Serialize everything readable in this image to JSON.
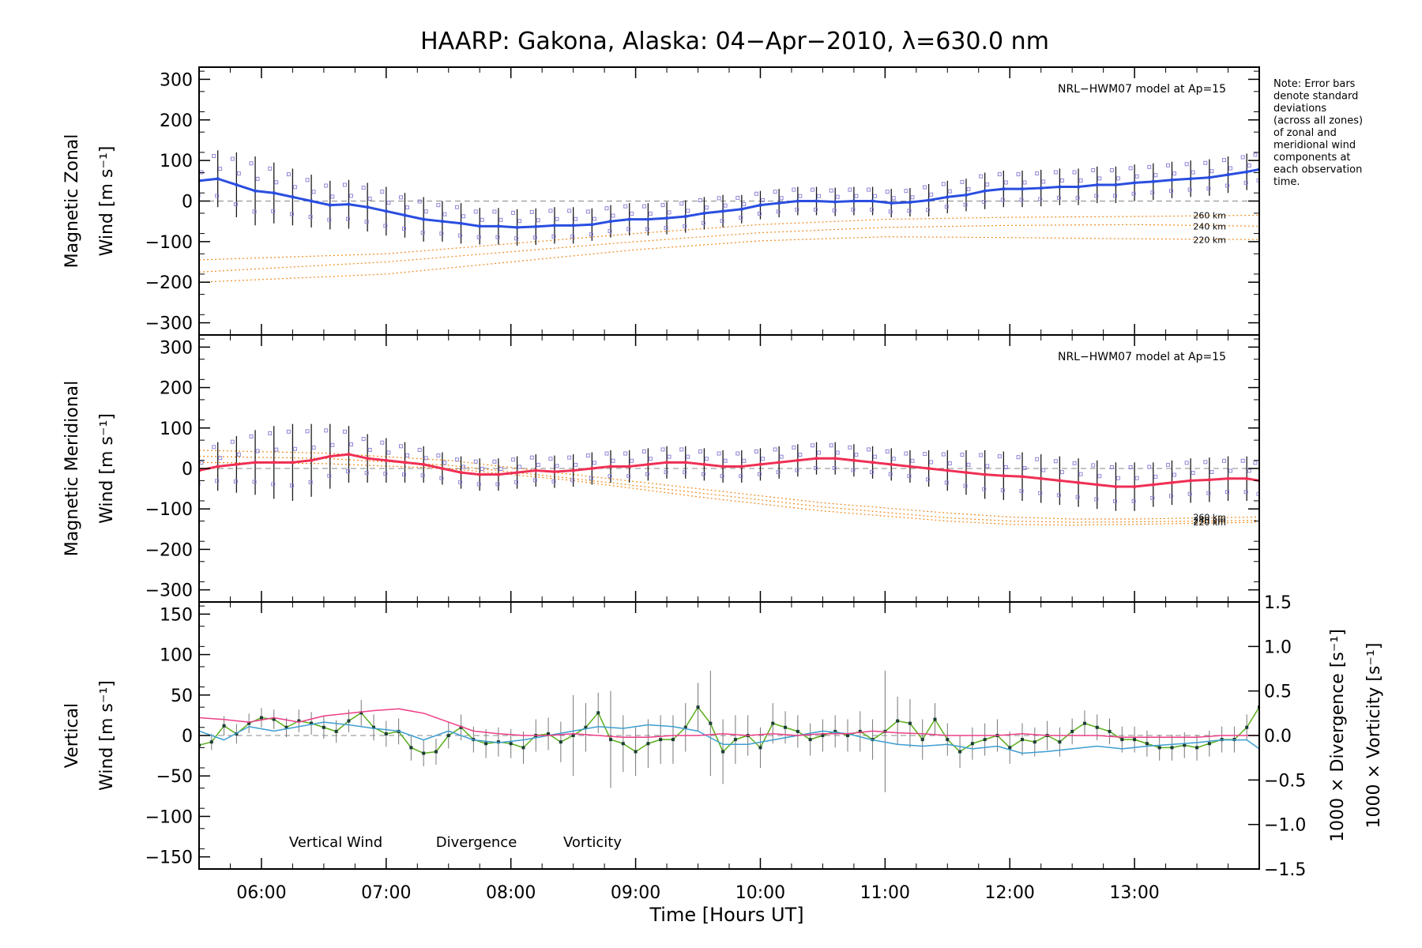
{
  "title": "HAARP: Gakona,  Alaska: 04−Apr−2010, λ=630.0 nm",
  "note_lines": [
    "Note: Error bars",
    "denote standard",
    "deviations",
    "(across all zones)",
    "of zonal and",
    "meridional wind",
    "components at",
    "each observation",
    "time."
  ],
  "colors": {
    "zonal": "#2a4ee0",
    "meridional": "#ef2f54",
    "vertical": "#5aae1c",
    "divergence": "#3e9ed1",
    "vorticity": "#ee3f88",
    "model": "#f08a1c",
    "error_bar": "#000000",
    "scatter": "#8f86d8"
  },
  "chart_data": [
    {
      "type": "line",
      "panel": "zonal",
      "ylabel_lines": [
        "Magnetic Zonal",
        "Wind [m s⁻¹]"
      ],
      "ylim": [
        -330,
        330
      ],
      "yticks": [
        -300,
        -200,
        -100,
        0,
        100,
        200,
        300
      ],
      "ytick_labels": [
        "−300",
        "−200",
        "−100",
        "0",
        "100",
        "200",
        "300"
      ],
      "xlim": [
        5.5,
        14.0
      ],
      "model_label": "NRL−HWM07 model at Ap=15",
      "model_series": [
        {
          "name": "260 km",
          "x": [
            5.5,
            7,
            8,
            9,
            10,
            11,
            12,
            13,
            14
          ],
          "y": [
            -145,
            -130,
            -105,
            -80,
            -58,
            -45,
            -40,
            -38,
            -35
          ]
        },
        {
          "name": "240 km",
          "x": [
            5.5,
            7,
            8,
            9,
            10,
            11,
            12,
            13,
            14
          ],
          "y": [
            -175,
            -150,
            -125,
            -100,
            -78,
            -65,
            -60,
            -58,
            -62
          ]
        },
        {
          "name": "220 km",
          "x": [
            5.5,
            7,
            8,
            9,
            10,
            11,
            12,
            13,
            14
          ],
          "y": [
            -200,
            -180,
            -150,
            -120,
            -98,
            -88,
            -90,
            -93,
            -95
          ]
        }
      ],
      "series": [
        {
          "name": "Zonal",
          "x": [
            5.5,
            5.65,
            5.8,
            5.95,
            6.1,
            6.25,
            6.4,
            6.55,
            6.7,
            6.85,
            7.0,
            7.15,
            7.3,
            7.45,
            7.6,
            7.75,
            7.9,
            8.05,
            8.2,
            8.35,
            8.5,
            8.65,
            8.8,
            8.95,
            9.1,
            9.25,
            9.4,
            9.55,
            9.7,
            9.85,
            10.0,
            10.15,
            10.3,
            10.45,
            10.6,
            10.75,
            10.9,
            11.05,
            11.2,
            11.35,
            11.5,
            11.65,
            11.8,
            11.95,
            12.1,
            12.25,
            12.4,
            12.55,
            12.7,
            12.85,
            13.0,
            13.15,
            13.3,
            13.45,
            13.6,
            13.75,
            13.9,
            14.0
          ],
          "y": [
            50,
            55,
            40,
            25,
            20,
            10,
            0,
            -10,
            -8,
            -15,
            -25,
            -35,
            -45,
            -50,
            -55,
            -62,
            -62,
            -65,
            -63,
            -60,
            -60,
            -58,
            -50,
            -45,
            -45,
            -42,
            -38,
            -30,
            -25,
            -20,
            -10,
            -5,
            0,
            0,
            -2,
            0,
            0,
            -5,
            -3,
            2,
            10,
            15,
            25,
            30,
            30,
            32,
            35,
            35,
            40,
            40,
            45,
            48,
            52,
            55,
            58,
            65,
            72,
            78
          ],
          "err": [
            60,
            70,
            80,
            85,
            75,
            70,
            65,
            60,
            60,
            60,
            60,
            55,
            55,
            50,
            50,
            45,
            45,
            45,
            45,
            45,
            45,
            40,
            40,
            40,
            40,
            40,
            40,
            40,
            40,
            35,
            35,
            35,
            35,
            35,
            35,
            35,
            35,
            35,
            35,
            40,
            40,
            40,
            45,
            45,
            45,
            45,
            45,
            45,
            45,
            45,
            45,
            45,
            45,
            45,
            45,
            45,
            45,
            45
          ]
        }
      ]
    },
    {
      "type": "line",
      "panel": "meridional",
      "ylabel_lines": [
        "Magnetic Meridional",
        "Wind [m s⁻¹]"
      ],
      "ylim": [
        -330,
        330
      ],
      "yticks": [
        -300,
        -200,
        -100,
        0,
        100,
        200,
        300
      ],
      "ytick_labels": [
        "−300",
        "−200",
        "−100",
        "0",
        "100",
        "200",
        "300"
      ],
      "xlim": [
        5.5,
        14.0
      ],
      "model_label": "NRL−HWM07 model at Ap=15",
      "model_series": [
        {
          "name": "260 km",
          "x": [
            5.5,
            6.5,
            7.5,
            8.5,
            9.5,
            10.5,
            11.5,
            12,
            12.5,
            13,
            14
          ],
          "y": [
            45,
            38,
            20,
            -15,
            -50,
            -85,
            -110,
            -120,
            -125,
            -125,
            -120
          ]
        },
        {
          "name": "240 km",
          "x": [
            5.5,
            6.5,
            7.5,
            8.5,
            9.5,
            10.5,
            11.5,
            12,
            12.5,
            13,
            14
          ],
          "y": [
            30,
            25,
            8,
            -25,
            -60,
            -95,
            -122,
            -130,
            -133,
            -132,
            -128
          ]
        },
        {
          "name": "220 km",
          "x": [
            5.5,
            6.5,
            7.5,
            8.5,
            9.5,
            10.5,
            11.5,
            12,
            12.5,
            13,
            14
          ],
          "y": [
            15,
            12,
            0,
            -30,
            -70,
            -105,
            -130,
            -138,
            -140,
            -138,
            -133
          ]
        }
      ],
      "series": [
        {
          "name": "Meridional",
          "x": [
            5.5,
            5.65,
            5.8,
            5.95,
            6.1,
            6.25,
            6.4,
            6.55,
            6.7,
            6.85,
            7.0,
            7.15,
            7.3,
            7.45,
            7.6,
            7.75,
            7.9,
            8.05,
            8.2,
            8.35,
            8.5,
            8.65,
            8.8,
            8.95,
            9.1,
            9.25,
            9.4,
            9.55,
            9.7,
            9.85,
            10.0,
            10.15,
            10.3,
            10.45,
            10.6,
            10.75,
            10.9,
            11.05,
            11.2,
            11.35,
            11.5,
            11.65,
            11.8,
            11.95,
            12.1,
            12.25,
            12.4,
            12.55,
            12.7,
            12.85,
            13.0,
            13.15,
            13.3,
            13.45,
            13.6,
            13.75,
            13.9,
            14.0
          ],
          "y": [
            -5,
            5,
            10,
            15,
            15,
            15,
            20,
            30,
            35,
            25,
            20,
            15,
            10,
            0,
            -10,
            -15,
            -15,
            -10,
            -5,
            -8,
            -5,
            0,
            5,
            5,
            10,
            15,
            15,
            10,
            5,
            5,
            10,
            15,
            20,
            25,
            25,
            20,
            15,
            10,
            5,
            0,
            -5,
            -10,
            -15,
            -18,
            -20,
            -25,
            -30,
            -35,
            -40,
            -45,
            -45,
            -40,
            -35,
            -30,
            -28,
            -25,
            -25,
            -30
          ],
          "err": [
            55,
            60,
            70,
            80,
            90,
            95,
            90,
            80,
            70,
            60,
            55,
            50,
            45,
            40,
            40,
            40,
            40,
            40,
            40,
            40,
            40,
            40,
            40,
            40,
            40,
            40,
            40,
            40,
            40,
            40,
            40,
            40,
            40,
            40,
            40,
            40,
            40,
            40,
            40,
            45,
            50,
            55,
            60,
            60,
            60,
            60,
            60,
            60,
            60,
            60,
            60,
            55,
            55,
            55,
            55,
            55,
            55,
            55
          ]
        }
      ]
    },
    {
      "type": "line",
      "panel": "vertical",
      "ylabel_lines": [
        "Vertical",
        "Wind [m s⁻¹]"
      ],
      "y2label_div": "1000 × Divergence [s⁻¹]",
      "y2label_vort": "1000 × Vorticity [s⁻¹]",
      "ylim": [
        -165,
        165
      ],
      "yticks": [
        -150,
        -100,
        -50,
        0,
        50,
        100,
        150
      ],
      "ytick_labels": [
        "−150",
        "−100",
        "−50",
        "0",
        "50",
        "100",
        "150"
      ],
      "y2lim": [
        -1.5,
        1.5
      ],
      "y2ticks": [
        -1.5,
        -1.0,
        -0.5,
        0.0,
        0.5,
        1.0,
        1.5
      ],
      "y2tick_labels": [
        "−1.5",
        "−1.0",
        "−0.5",
        "0.0",
        "0.5",
        "1.0",
        "1.5"
      ],
      "xlim": [
        5.5,
        14.0
      ],
      "xticks": [
        6,
        7,
        8,
        9,
        10,
        11,
        12,
        13
      ],
      "xtick_labels": [
        "06:00",
        "07:00",
        "08:00",
        "09:00",
        "10:00",
        "11:00",
        "12:00",
        "13:00"
      ],
      "xlabel": "Time [Hours UT]",
      "legend": [
        "Vertical Wind",
        "Divergence",
        "Vorticity"
      ],
      "series": [
        {
          "name": "Vertical Wind",
          "axis": "left",
          "x": [
            5.5,
            5.6,
            5.7,
            5.8,
            5.9,
            6.0,
            6.1,
            6.2,
            6.3,
            6.4,
            6.5,
            6.6,
            6.7,
            6.8,
            6.9,
            7.0,
            7.1,
            7.2,
            7.3,
            7.4,
            7.5,
            7.6,
            7.7,
            7.8,
            7.9,
            8.0,
            8.1,
            8.2,
            8.3,
            8.4,
            8.5,
            8.6,
            8.7,
            8.8,
            8.9,
            9.0,
            9.1,
            9.2,
            9.3,
            9.4,
            9.5,
            9.6,
            9.7,
            9.8,
            9.9,
            10.0,
            10.1,
            10.2,
            10.3,
            10.4,
            10.5,
            10.6,
            10.7,
            10.8,
            10.9,
            11.0,
            11.1,
            11.2,
            11.3,
            11.4,
            11.5,
            11.6,
            11.7,
            11.8,
            11.9,
            12.0,
            12.1,
            12.2,
            12.3,
            12.4,
            12.5,
            12.6,
            12.7,
            12.8,
            12.9,
            13.0,
            13.1,
            13.2,
            13.3,
            13.4,
            13.5,
            13.6,
            13.7,
            13.8,
            13.9,
            14.0
          ],
          "y": [
            -12,
            -8,
            12,
            2,
            15,
            22,
            20,
            10,
            18,
            15,
            10,
            5,
            18,
            28,
            10,
            2,
            5,
            -15,
            -22,
            -20,
            0,
            10,
            -5,
            -10,
            -8,
            -10,
            -15,
            0,
            2,
            -8,
            0,
            10,
            28,
            -5,
            -10,
            -20,
            -10,
            -5,
            -5,
            10,
            35,
            15,
            -20,
            -5,
            0,
            -15,
            15,
            10,
            5,
            -5,
            0,
            5,
            0,
            5,
            -5,
            5,
            18,
            15,
            -5,
            20,
            -5,
            -20,
            -10,
            -5,
            0,
            -15,
            -5,
            -8,
            0,
            -8,
            5,
            15,
            10,
            5,
            -5,
            -5,
            -10,
            -15,
            -15,
            -12,
            -15,
            -10,
            -5,
            -5,
            10,
            35
          ],
          "err": [
            10,
            10,
            12,
            12,
            12,
            12,
            12,
            12,
            14,
            14,
            14,
            14,
            14,
            16,
            16,
            16,
            16,
            16,
            16,
            16,
            16,
            16,
            16,
            18,
            18,
            18,
            20,
            20,
            20,
            25,
            50,
            30,
            25,
            60,
            35,
            30,
            30,
            30,
            30,
            30,
            30,
            65,
            40,
            30,
            25,
            25,
            25,
            20,
            20,
            20,
            20,
            20,
            20,
            25,
            25,
            75,
            30,
            30,
            25,
            20,
            20,
            20,
            20,
            20,
            20,
            20,
            20,
            18,
            18,
            18,
            16,
            16,
            16,
            16,
            16,
            16,
            16,
            16,
            16,
            16,
            16,
            16,
            16,
            16,
            16,
            16
          ]
        },
        {
          "name": "Divergence",
          "axis": "right",
          "x": [
            5.5,
            5.7,
            5.9,
            6.1,
            6.3,
            6.5,
            6.7,
            6.9,
            7.1,
            7.3,
            7.5,
            7.7,
            7.9,
            8.1,
            8.3,
            8.5,
            8.7,
            8.9,
            9.1,
            9.3,
            9.5,
            9.7,
            9.9,
            10.1,
            10.3,
            10.5,
            10.7,
            10.9,
            11.1,
            11.3,
            11.5,
            11.7,
            11.9,
            12.1,
            12.3,
            12.5,
            12.7,
            12.9,
            13.1,
            13.3,
            13.5,
            13.7,
            13.9,
            14.0
          ],
          "y": [
            0.05,
            -0.05,
            0.1,
            0.05,
            0.1,
            0.15,
            0.12,
            0.08,
            0.05,
            -0.05,
            0.05,
            -0.05,
            -0.08,
            -0.05,
            0.0,
            0.05,
            0.1,
            0.08,
            0.12,
            0.1,
            0.05,
            -0.1,
            -0.1,
            -0.05,
            0.0,
            0.05,
            0.02,
            -0.05,
            -0.1,
            -0.12,
            -0.1,
            -0.15,
            -0.12,
            -0.2,
            -0.18,
            -0.15,
            -0.12,
            -0.15,
            -0.12,
            -0.1,
            -0.08,
            -0.05,
            -0.05,
            -0.15
          ]
        },
        {
          "name": "Vorticity",
          "axis": "right",
          "x": [
            5.5,
            5.7,
            5.9,
            6.1,
            6.3,
            6.5,
            6.7,
            6.9,
            7.1,
            7.3,
            7.5,
            7.7,
            7.9,
            8.1,
            8.3,
            8.5,
            8.7,
            8.9,
            9.1,
            9.3,
            9.5,
            9.7,
            9.9,
            10.1,
            10.3,
            10.5,
            10.7,
            10.9,
            11.1,
            11.3,
            11.5,
            11.7,
            11.9,
            12.1,
            12.3,
            12.5,
            12.7,
            12.9,
            13.1,
            13.3,
            13.5,
            13.7,
            13.9,
            14.0
          ],
          "y": [
            0.2,
            0.18,
            0.15,
            0.2,
            0.15,
            0.22,
            0.25,
            0.28,
            0.3,
            0.25,
            0.15,
            0.05,
            0.02,
            0.0,
            0.0,
            0.02,
            0.0,
            -0.02,
            -0.02,
            0.0,
            0.0,
            0.02,
            0.0,
            0.02,
            0.0,
            0.02,
            0.02,
            0.05,
            0.03,
            0.02,
            0.0,
            0.0,
            0.0,
            0.02,
            0.0,
            0.0,
            0.0,
            -0.02,
            -0.02,
            -0.02,
            -0.02,
            0.0,
            0.0,
            0.0
          ]
        }
      ]
    }
  ]
}
